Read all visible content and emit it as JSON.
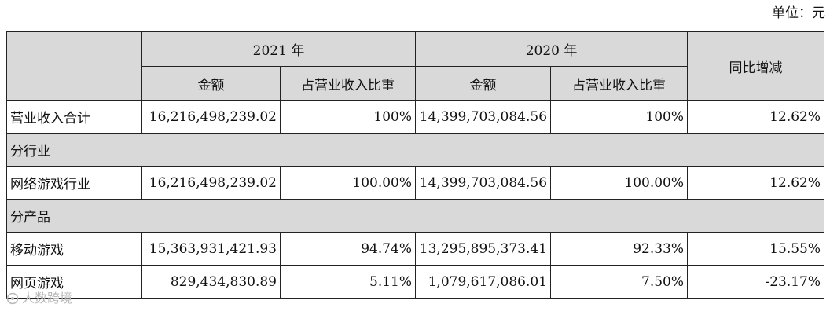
{
  "unit_label": "单位：元",
  "header": {
    "year_2021": "2021 年",
    "year_2020": "2020 年",
    "yoy": "同比增减",
    "amount": "金额",
    "ratio": "占营业收入比重"
  },
  "rows": {
    "total": {
      "label": "营业收入合计",
      "amt_2021": "16,216,498,239.02",
      "ratio_2021": "100%",
      "amt_2020": "14,399,703,084.56",
      "ratio_2020": "100%",
      "yoy": "12.62%"
    },
    "section_industry": "分行业",
    "industry": {
      "label": "网络游戏行业",
      "amt_2021": "16,216,498,239.02",
      "ratio_2021": "100.00%",
      "amt_2020": "14,399,703,084.56",
      "ratio_2020": "100.00%",
      "yoy": "12.62%"
    },
    "section_product": "分产品",
    "mobile": {
      "label": "移动游戏",
      "amt_2021": "15,363,931,421.93",
      "ratio_2021": "94.74%",
      "amt_2020": "13,295,895,373.41",
      "ratio_2020": "92.33%",
      "yoy": "15.55%"
    },
    "web": {
      "label": "网页游戏",
      "amt_2021": "829,434,830.89",
      "ratio_2021": "5.11%",
      "amt_2020": "1,079,617,086.01",
      "ratio_2020": "7.50%",
      "yoy": "-23.17%"
    }
  },
  "watermark": {
    "text": "人数跨境",
    "icon": "logo-icon"
  }
}
